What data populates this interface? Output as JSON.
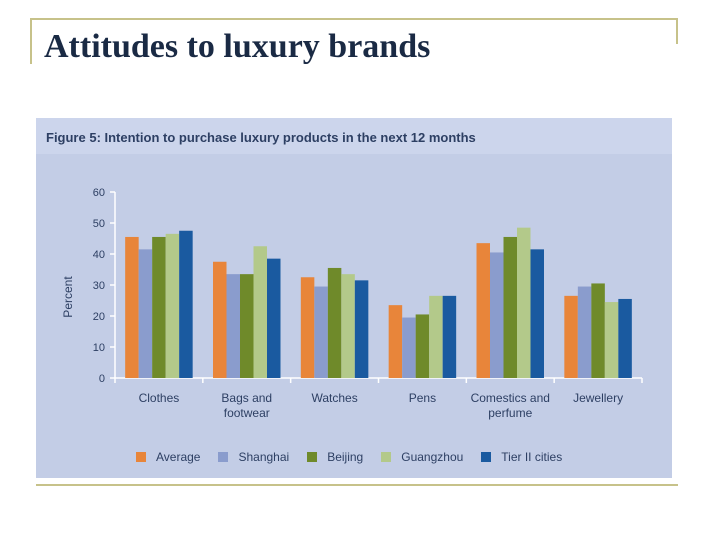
{
  "slide": {
    "title": "Attitudes to luxury brands"
  },
  "chart_data": {
    "type": "bar",
    "title": "Figure 5: Intention to purchase luxury products in the next 12 months",
    "ylabel": "Percent",
    "xlabel": "",
    "ylim": [
      0,
      60
    ],
    "yticks": [
      0,
      10,
      20,
      30,
      40,
      50,
      60
    ],
    "grid": false,
    "legend_position": "bottom",
    "categories": [
      [
        "Clothes"
      ],
      [
        "Bags and",
        "footwear"
      ],
      [
        "Watches"
      ],
      [
        "Pens"
      ],
      [
        "Comestics and",
        "perfume"
      ],
      [
        "Jewellery"
      ]
    ],
    "series": [
      {
        "name": "Average",
        "color": "#e8853a",
        "values": [
          45.5,
          37.5,
          32.5,
          23.5,
          43.5,
          26.5
        ]
      },
      {
        "name": "Shanghai",
        "color": "#8a9ccd",
        "values": [
          41.5,
          33.5,
          29.5,
          19.5,
          40.5,
          29.5
        ]
      },
      {
        "name": "Beijing",
        "color": "#6f8a2a",
        "values": [
          45.5,
          33.5,
          35.5,
          20.5,
          45.5,
          30.5
        ]
      },
      {
        "name": "Guangzhou",
        "color": "#b3c98a",
        "values": [
          46.5,
          42.5,
          33.5,
          26.5,
          48.5,
          24.5
        ]
      },
      {
        "name": "Tier II cities",
        "color": "#1a5aa0",
        "values": [
          47.5,
          38.5,
          31.5,
          26.5,
          41.5,
          25.5
        ]
      }
    ]
  }
}
